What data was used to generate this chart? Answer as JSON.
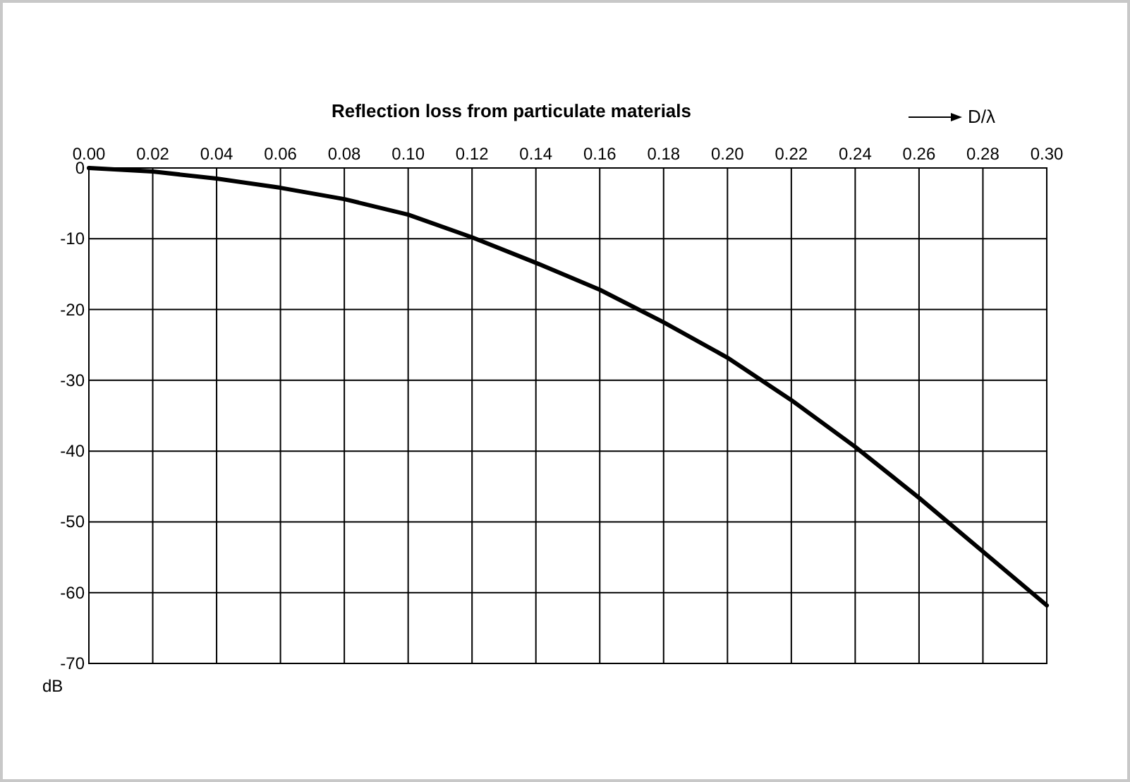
{
  "chart_data": {
    "type": "line",
    "title": "Reflection loss from particulate materials",
    "xlabel": "D/λ",
    "ylabel": "dB",
    "x": [
      0,
      0.02,
      0.04,
      0.06,
      0.08,
      0.1,
      0.12,
      0.14,
      0.16,
      0.18,
      0.2,
      0.22,
      0.24,
      0.26,
      0.28,
      0.3
    ],
    "series": [
      {
        "color": "#000000",
        "values": [
          0,
          -0.5,
          -1.5,
          -2.8,
          -4.4,
          -6.6,
          -9.8,
          -13.4,
          -17.2,
          -21.8,
          -26.8,
          -32.8,
          -39.4,
          -46.6,
          -54.2,
          -61.8
        ]
      }
    ],
    "xlim": [
      0,
      0.3
    ],
    "xticks": [
      {
        "value": 0,
        "label": "0.00"
      },
      {
        "value": 0.02,
        "label": "0.02"
      },
      {
        "value": 0.04,
        "label": "0.04"
      },
      {
        "value": 0.06,
        "label": "0.06"
      },
      {
        "value": 0.08,
        "label": "0.08"
      },
      {
        "value": 0.1,
        "label": "0.10"
      },
      {
        "value": 0.12,
        "label": "0.12"
      },
      {
        "value": 0.14,
        "label": "0.14"
      },
      {
        "value": 0.16,
        "label": "0.16"
      },
      {
        "value": 0.18,
        "label": "0.18"
      },
      {
        "value": 0.2,
        "label": "0.20"
      },
      {
        "value": 0.22,
        "label": "0.22"
      },
      {
        "value": 0.24,
        "label": "0.24"
      },
      {
        "value": 0.26,
        "label": "0.26"
      },
      {
        "value": 0.28,
        "label": "0.28"
      },
      {
        "value": 0.3,
        "label": "0.30"
      }
    ],
    "ylim": [
      -70,
      0
    ],
    "yticks": [
      0,
      -10,
      -20,
      -30,
      -40,
      -50,
      -60,
      -70
    ],
    "grid": true,
    "marker": "none",
    "line_style": "solid"
  }
}
